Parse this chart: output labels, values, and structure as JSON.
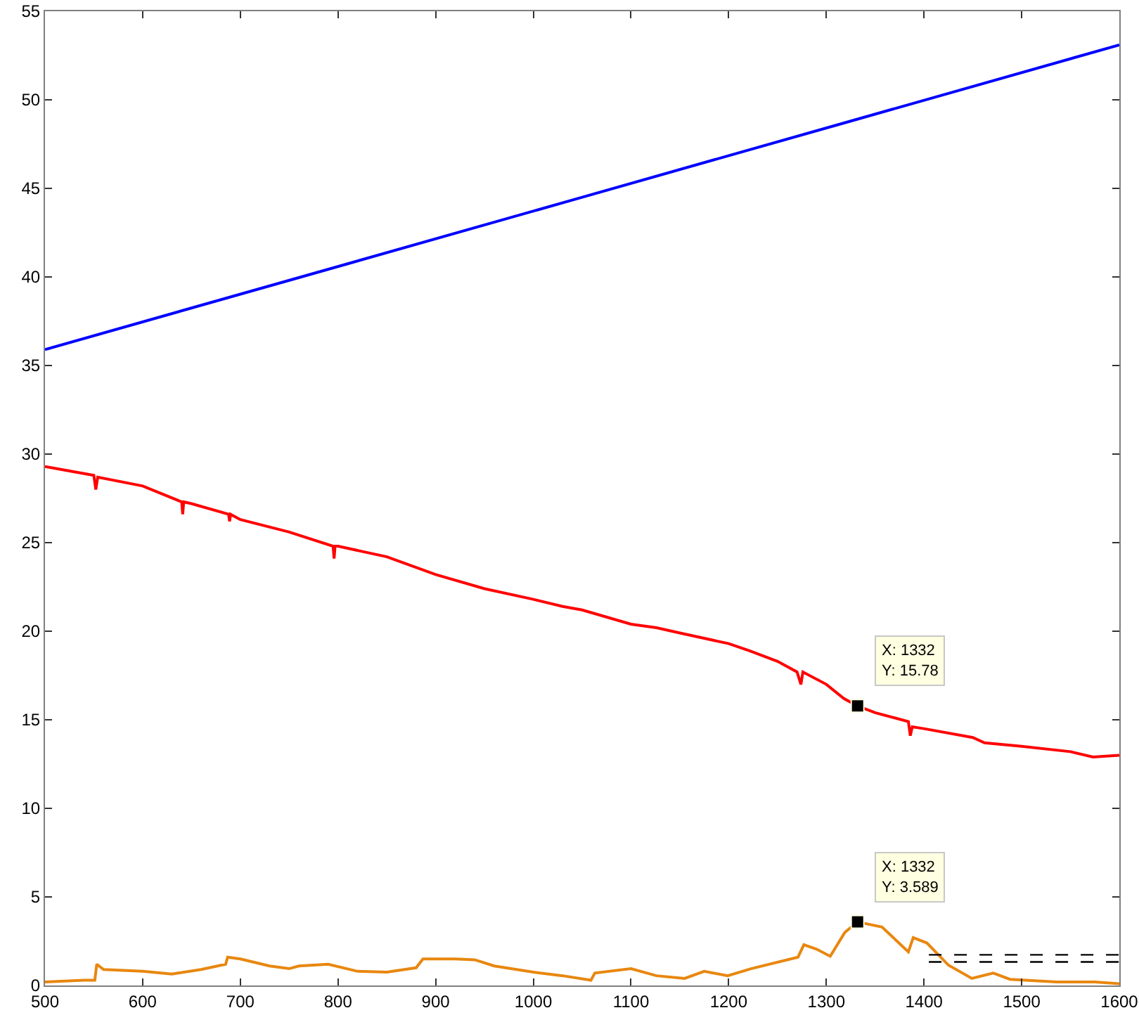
{
  "chart_data": {
    "type": "line",
    "xlim": [
      500,
      1600
    ],
    "ylim": [
      0,
      55
    ],
    "xticks": [
      500,
      600,
      700,
      800,
      900,
      1000,
      1100,
      1200,
      1300,
      1400,
      1500,
      1600
    ],
    "yticks": [
      0,
      5,
      10,
      15,
      20,
      25,
      30,
      35,
      40,
      45,
      50,
      55
    ],
    "grid": false,
    "marker": "none",
    "line_style": "solid",
    "series": [
      {
        "color": "#0000ff",
        "x": [
          500,
          775,
          1050,
          1325,
          1600
        ],
        "values": [
          35.9,
          40.2,
          44.5,
          48.8,
          53.1
        ]
      },
      {
        "color": "#ff0000",
        "x": [
          500,
          520,
          550,
          552,
          554,
          600,
          640,
          641,
          642,
          650,
          688,
          689,
          690,
          700,
          750,
          795,
          796,
          797,
          800,
          850,
          900,
          950,
          1000,
          1030,
          1050,
          1100,
          1126,
          1150,
          1200,
          1221,
          1250,
          1270,
          1274,
          1276,
          1300,
          1318,
          1332,
          1350,
          1384,
          1386,
          1388,
          1400,
          1450,
          1462,
          1500,
          1550,
          1573,
          1600
        ],
        "values": [
          29.3,
          29.1,
          28.8,
          28.0,
          28.7,
          28.2,
          27.3,
          26.6,
          27.3,
          27.2,
          26.6,
          26.2,
          26.6,
          26.3,
          25.6,
          24.8,
          24.1,
          24.8,
          24.8,
          24.2,
          23.2,
          22.4,
          21.8,
          21.4,
          21.2,
          20.4,
          20.2,
          19.9,
          19.3,
          18.9,
          18.3,
          17.7,
          17.0,
          17.7,
          17.0,
          16.2,
          15.78,
          15.4,
          14.9,
          14.1,
          14.6,
          14.5,
          14.0,
          13.7,
          13.5,
          13.2,
          12.9,
          13.0
        ]
      },
      {
        "color": "#e8870f",
        "x": [
          500,
          540,
          551,
          553,
          560,
          600,
          630,
          660,
          685,
          687,
          700,
          730,
          750,
          760,
          790,
          820,
          850,
          880,
          887,
          920,
          940,
          960,
          1000,
          1030,
          1059,
          1063,
          1100,
          1126,
          1155,
          1175,
          1199,
          1223,
          1271,
          1277,
          1290,
          1304,
          1319,
          1332,
          1357,
          1384,
          1389,
          1403,
          1425,
          1449,
          1471,
          1488,
          1536,
          1575,
          1600
        ],
        "values": [
          0.2,
          0.3,
          0.3,
          1.2,
          0.9,
          0.8,
          0.65,
          0.9,
          1.2,
          1.6,
          1.5,
          1.1,
          0.95,
          1.1,
          1.2,
          0.8,
          0.75,
          1.0,
          1.5,
          1.5,
          1.45,
          1.1,
          0.75,
          0.55,
          0.3,
          0.7,
          0.95,
          0.55,
          0.4,
          0.8,
          0.55,
          0.95,
          1.6,
          2.3,
          2.05,
          1.65,
          3.0,
          3.589,
          3.3,
          1.9,
          2.7,
          2.4,
          1.15,
          0.4,
          0.7,
          0.35,
          0.2,
          0.2,
          0.1
        ]
      },
      {
        "color": "#000000",
        "line_style": "dashed",
        "x": [
          1405,
          1600
        ],
        "values": [
          1.73,
          1.73
        ]
      },
      {
        "color": "#000000",
        "line_style": "dashed",
        "x": [
          1405,
          1600
        ],
        "values": [
          1.33,
          1.33
        ]
      }
    ],
    "annotations": [
      {
        "text": "X: 1332\nY: 15.78",
        "x": 1332,
        "y": 15.78
      },
      {
        "text": "X: 1332\nY: 3.589",
        "x": 1332,
        "y": 3.589
      }
    ]
  }
}
